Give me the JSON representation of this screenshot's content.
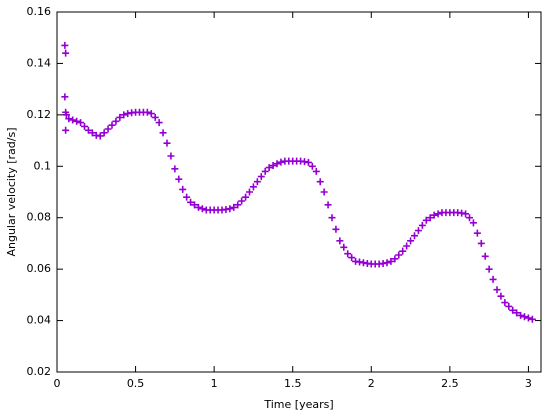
{
  "chart_data": {
    "type": "scatter",
    "x_label": "Time [years]",
    "y_label": "Angular velocity [rad/s]",
    "xlim": [
      0,
      3.08
    ],
    "ylim": [
      0.02,
      0.16
    ],
    "xticks": [
      0,
      0.5,
      1,
      1.5,
      2,
      2.5,
      3
    ],
    "yticks": [
      0.02,
      0.04,
      0.06,
      0.08,
      0.1,
      0.12,
      0.14,
      0.16
    ],
    "grid": false,
    "marker": "+",
    "series": [
      {
        "color": "#9400d3",
        "x": [
          0.05,
          0.055,
          0.05,
          0.055,
          0.06,
          0.055,
          0.075,
          0.1,
          0.125,
          0.15,
          0.175,
          0.2,
          0.225,
          0.25,
          0.275,
          0.3,
          0.325,
          0.35,
          0.375,
          0.4,
          0.425,
          0.45,
          0.475,
          0.5,
          0.525,
          0.55,
          0.575,
          0.6,
          0.625,
          0.65,
          0.675,
          0.7,
          0.725,
          0.75,
          0.775,
          0.8,
          0.825,
          0.85,
          0.875,
          0.9,
          0.925,
          0.95,
          0.975,
          1.0,
          1.025,
          1.05,
          1.075,
          1.1,
          1.125,
          1.15,
          1.175,
          1.2,
          1.225,
          1.25,
          1.275,
          1.3,
          1.325,
          1.35,
          1.375,
          1.4,
          1.425,
          1.45,
          1.475,
          1.5,
          1.525,
          1.55,
          1.575,
          1.6,
          1.625,
          1.65,
          1.675,
          1.7,
          1.725,
          1.75,
          1.775,
          1.8,
          1.825,
          1.85,
          1.875,
          1.9,
          1.925,
          1.95,
          1.975,
          2.0,
          2.025,
          2.05,
          2.075,
          2.1,
          2.125,
          2.15,
          2.175,
          2.2,
          2.225,
          2.25,
          2.275,
          2.3,
          2.325,
          2.35,
          2.375,
          2.4,
          2.425,
          2.45,
          2.475,
          2.5,
          2.525,
          2.55,
          2.575,
          2.6,
          2.625,
          2.65,
          2.675,
          2.7,
          2.725,
          2.75,
          2.775,
          2.8,
          2.825,
          2.85,
          2.875,
          2.9,
          2.925,
          2.95,
          2.975,
          3.0,
          3.025
        ],
        "values": [
          0.147,
          0.144,
          0.127,
          0.121,
          0.12,
          0.114,
          0.1185,
          0.118,
          0.1175,
          0.117,
          0.1155,
          0.114,
          0.113,
          0.112,
          0.1118,
          0.113,
          0.1145,
          0.116,
          0.1175,
          0.119,
          0.12,
          0.1205,
          0.1208,
          0.121,
          0.121,
          0.121,
          0.121,
          0.1205,
          0.119,
          0.117,
          0.113,
          0.109,
          0.104,
          0.099,
          0.095,
          0.091,
          0.088,
          0.086,
          0.085,
          0.084,
          0.0835,
          0.083,
          0.083,
          0.083,
          0.083,
          0.083,
          0.0832,
          0.0835,
          0.084,
          0.085,
          0.0865,
          0.088,
          0.09,
          0.092,
          0.094,
          0.096,
          0.098,
          0.0995,
          0.1003,
          0.101,
          0.1016,
          0.102,
          0.102,
          0.102,
          0.102,
          0.102,
          0.1018,
          0.1015,
          0.1,
          0.098,
          0.094,
          0.09,
          0.085,
          0.08,
          0.0755,
          0.071,
          0.0685,
          0.066,
          0.0645,
          0.063,
          0.0628,
          0.0625,
          0.0622,
          0.062,
          0.062,
          0.062,
          0.0622,
          0.0625,
          0.063,
          0.064,
          0.0655,
          0.067,
          0.069,
          0.071,
          0.073,
          0.075,
          0.077,
          0.079,
          0.08,
          0.081,
          0.0815,
          0.082,
          0.082,
          0.082,
          0.082,
          0.082,
          0.0818,
          0.0815,
          0.08,
          0.078,
          0.074,
          0.07,
          0.065,
          0.06,
          0.056,
          0.052,
          0.0495,
          0.047,
          0.0455,
          0.044,
          0.043,
          0.042,
          0.0415,
          0.041,
          0.0405
        ]
      }
    ]
  }
}
